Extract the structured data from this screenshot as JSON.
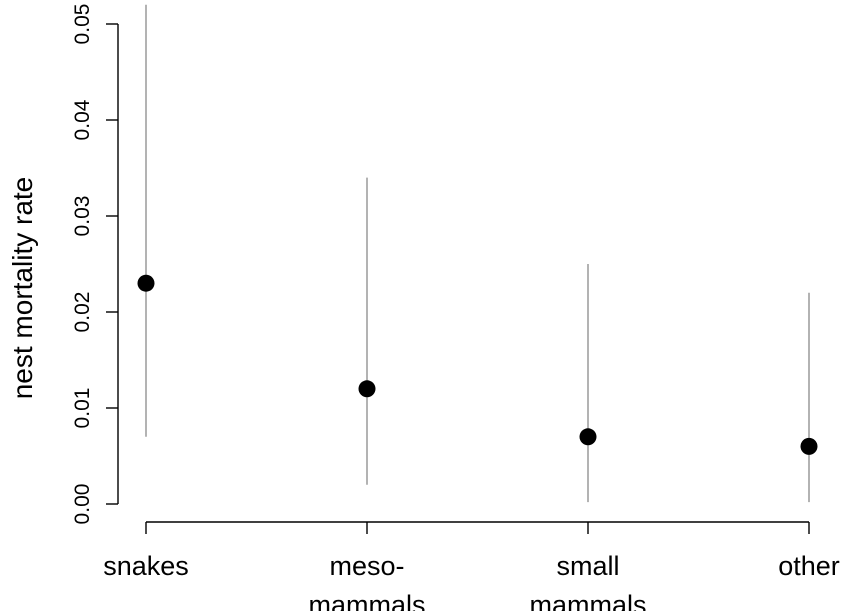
{
  "chart_data": {
    "type": "scatter",
    "ylabel": "nest mortality rate",
    "xlabel": "",
    "categories": [
      [
        "snakes"
      ],
      [
        "meso-",
        "mammals"
      ],
      [
        "small",
        "mammals"
      ],
      [
        "other"
      ]
    ],
    "values": [
      0.023,
      0.012,
      0.007,
      0.006
    ],
    "lower": [
      0.007,
      0.002,
      0.0002,
      0.0002
    ],
    "upper": [
      0.052,
      0.034,
      0.025,
      0.022
    ],
    "ylim": [
      0,
      0.05
    ],
    "yticks": [
      "0.00",
      "0.01",
      "0.02",
      "0.03",
      "0.04",
      "0.05"
    ],
    "grid": false
  }
}
